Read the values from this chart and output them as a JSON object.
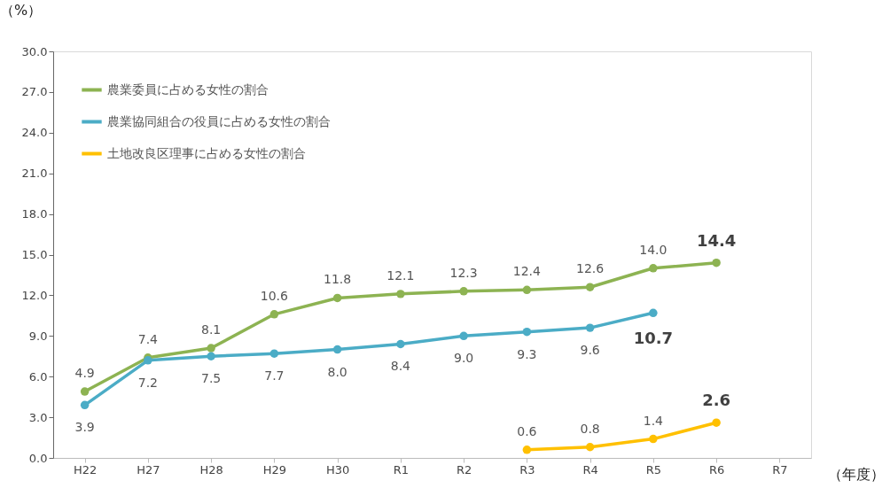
{
  "chart_data": {
    "type": "line",
    "ylabel": "（%）",
    "xlabel": "（年度）",
    "categories": [
      "H22",
      "H27",
      "H28",
      "H29",
      "H30",
      "R1",
      "R2",
      "R3",
      "R4",
      "R5",
      "R6",
      "R7"
    ],
    "series": [
      {
        "name": "農業委員に占める女性の割合",
        "color": "#8db352",
        "values": [
          4.9,
          7.4,
          8.1,
          10.6,
          11.8,
          12.1,
          12.3,
          12.4,
          12.6,
          14.0,
          14.4,
          null
        ],
        "value_labels": [
          "4.9",
          "7.4",
          "8.1",
          "10.6",
          "11.8",
          "12.1",
          "12.3",
          "12.4",
          "12.6",
          "14.0",
          "14.4",
          null
        ]
      },
      {
        "name": "農業協同組合の役員に占める女性の割合",
        "color": "#4bacc6",
        "values": [
          3.9,
          7.2,
          7.5,
          7.7,
          8.0,
          8.4,
          9.0,
          9.3,
          9.6,
          10.7,
          null,
          null
        ],
        "value_labels": [
          "3.9",
          "7.2",
          "7.5",
          "7.7",
          "8.0",
          "8.4",
          "9.0",
          "9.3",
          "9.6",
          "10.7",
          null,
          null
        ]
      },
      {
        "name": "土地改良区理事に占める女性の割合",
        "color": "#ffc000",
        "values": [
          null,
          null,
          null,
          null,
          null,
          null,
          null,
          0.6,
          0.8,
          1.4,
          2.6,
          null
        ],
        "value_labels": [
          null,
          null,
          null,
          null,
          null,
          null,
          null,
          "0.6",
          "0.8",
          "1.4",
          "2.6",
          null
        ]
      }
    ],
    "ylim": [
      0,
      30
    ],
    "yticks": [
      {
        "value": 0,
        "label": "0.0"
      },
      {
        "value": 3,
        "label": "3.0"
      },
      {
        "value": 6,
        "label": "6.0"
      },
      {
        "value": 9,
        "label": "9.0"
      },
      {
        "value": 12,
        "label": "12.0"
      },
      {
        "value": 15,
        "label": "15.0"
      },
      {
        "value": 18,
        "label": "18.0"
      },
      {
        "value": 21,
        "label": "21.0"
      },
      {
        "value": 24,
        "label": "24.0"
      },
      {
        "value": 27,
        "label": "27.0"
      },
      {
        "value": 30,
        "label": "30.0"
      }
    ],
    "grid": false,
    "legend": "top left",
    "marker": "circle",
    "line_style": "solid"
  }
}
